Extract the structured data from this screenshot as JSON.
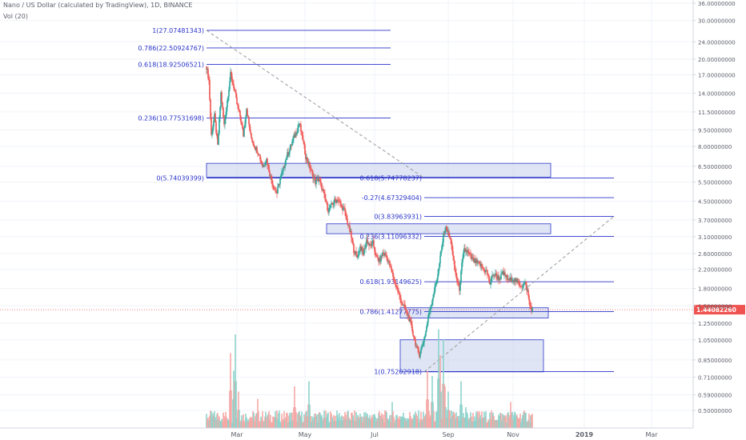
{
  "header": {
    "title": "Nano / US Dollar (calculated by TradingView), 1D, BINANCE",
    "volume_label": "Vol (20)"
  },
  "colors": {
    "up": "#26a69a",
    "down": "#ef5350",
    "vol_up": "#8fd3cc",
    "vol_down": "#f5a9a7",
    "fib_line": "#2b35c8",
    "fib_text": "#2b35c8",
    "zone_fill": "#c9d3ec",
    "zone_stroke": "#2b35c8",
    "trend": "#9a9a9a",
    "price_line": "#ef5350",
    "price_badge": "#ef5350",
    "grid": "#f0f3fa",
    "axis_text": "#5d606b"
  },
  "chart_data": {
    "type": "candlestick",
    "scale": "log",
    "x_ticks": [
      "Mar",
      "May",
      "Jul",
      "Sep",
      "Nov",
      "2019",
      "Mar"
    ],
    "y_ticks": [
      "36.00000000",
      "30.00000000",
      "24.00000000",
      "20.00000000",
      "17.00000000",
      "14.00000000",
      "11.50000000",
      "9.50000000",
      "8.00000000",
      "6.50000000",
      "5.50000000",
      "4.50000000",
      "3.70000000",
      "3.10000000",
      "2.60000000",
      "2.20000000",
      "1.80000000",
      "1.50000000",
      "1.25000000",
      "1.05000000",
      "0.85000000",
      "0.71000000",
      "0.59000000",
      "0.50000000"
    ],
    "current_price": "1.44082260",
    "fib_set_1": [
      {
        "label": "1(27.07481343)",
        "value": 27.07481343
      },
      {
        "label": "0.786(22.50924767)",
        "value": 22.50924767
      },
      {
        "label": "0.618(18.92506521)",
        "value": 18.92506521
      },
      {
        "label": "0.236(10.77531698)",
        "value": 10.77531698
      },
      {
        "label": "0(5.74039399)",
        "value": 5.74039399
      }
    ],
    "fib_set_2": [
      {
        "label": "0.618(5.74778237)",
        "value": 5.74778237
      },
      {
        "label": "-0.27(4.67329404)",
        "value": 4.67329404
      },
      {
        "label": "0(3.83963931)",
        "value": 3.83963931
      },
      {
        "label": "0.236(3.11096332)",
        "value": 3.11096332
      },
      {
        "label": "0.618(1.93149625)",
        "value": 1.93149625
      },
      {
        "label": "0.786(1.41277775)",
        "value": 1.41277775
      },
      {
        "label": "1(0.75202918)",
        "value": 0.75202918
      }
    ],
    "zones": [
      {
        "low": 5.8,
        "high": 6.7
      },
      {
        "low": 3.2,
        "high": 3.55
      },
      {
        "low": 1.32,
        "high": 1.47
      },
      {
        "low": 0.75,
        "high": 1.05
      }
    ],
    "trend_line_1": {
      "from": 27.07,
      "to": 5.74
    },
    "trend_line_2": {
      "from": 0.75,
      "to": 3.84
    },
    "price_path": [
      [
        0,
        18.5
      ],
      [
        3,
        16
      ],
      [
        6,
        9
      ],
      [
        10,
        11
      ],
      [
        14,
        8
      ],
      [
        18,
        14
      ],
      [
        22,
        10
      ],
      [
        26,
        13
      ],
      [
        30,
        17
      ],
      [
        34,
        15
      ],
      [
        38,
        12.5
      ],
      [
        42,
        11
      ],
      [
        46,
        9
      ],
      [
        50,
        12
      ],
      [
        55,
        9
      ],
      [
        60,
        8
      ],
      [
        65,
        7.5
      ],
      [
        70,
        6.5
      ],
      [
        75,
        7
      ],
      [
        80,
        5.8
      ],
      [
        85,
        5.1
      ],
      [
        88,
        4.9
      ],
      [
        92,
        5.7
      ],
      [
        96,
        6.3
      ],
      [
        100,
        7.2
      ],
      [
        104,
        7.8
      ],
      [
        108,
        8.6
      ],
      [
        112,
        9.3
      ],
      [
        116,
        10.2
      ],
      [
        120,
        8.7
      ],
      [
        124,
        7.2
      ],
      [
        128,
        6.6
      ],
      [
        132,
        6.0
      ],
      [
        136,
        5.5
      ],
      [
        140,
        5.7
      ],
      [
        144,
        5.2
      ],
      [
        148,
        4.6
      ],
      [
        152,
        4.1
      ],
      [
        156,
        4.3
      ],
      [
        160,
        4.5
      ],
      [
        164,
        4.6
      ],
      [
        168,
        4.3
      ],
      [
        172,
        4.1
      ],
      [
        176,
        3.6
      ],
      [
        180,
        3.2
      ],
      [
        184,
        2.7
      ],
      [
        188,
        2.5
      ],
      [
        192,
        2.8
      ],
      [
        196,
        2.6
      ],
      [
        200,
        3.0
      ],
      [
        204,
        2.8
      ],
      [
        208,
        2.9
      ],
      [
        212,
        2.5
      ],
      [
        216,
        2.4
      ],
      [
        220,
        2.6
      ],
      [
        224,
        2.55
      ],
      [
        228,
        2.35
      ],
      [
        232,
        2.1
      ],
      [
        236,
        1.9
      ],
      [
        240,
        1.7
      ],
      [
        244,
        1.55
      ],
      [
        248,
        1.45
      ],
      [
        252,
        1.35
      ],
      [
        256,
        1.2
      ],
      [
        260,
        1.05
      ],
      [
        263,
        0.95
      ],
      [
        266,
        0.9
      ],
      [
        270,
        1.0
      ],
      [
        274,
        1.15
      ],
      [
        278,
        1.4
      ],
      [
        282,
        1.6
      ],
      [
        286,
        1.85
      ],
      [
        290,
        2.2
      ],
      [
        294,
        2.8
      ],
      [
        297,
        3.3
      ],
      [
        300,
        3.4
      ],
      [
        303,
        3.1
      ],
      [
        306,
        2.9
      ],
      [
        308,
        2.5
      ],
      [
        310,
        2.2
      ],
      [
        313,
        1.95
      ],
      [
        316,
        1.8
      ],
      [
        319,
        2.3
      ],
      [
        322,
        2.7
      ],
      [
        326,
        2.65
      ],
      [
        330,
        2.5
      ],
      [
        334,
        2.4
      ],
      [
        338,
        2.35
      ],
      [
        342,
        2.3
      ],
      [
        346,
        2.2
      ],
      [
        350,
        2.15
      ],
      [
        354,
        1.9
      ],
      [
        358,
        2.1
      ],
      [
        362,
        2.05
      ],
      [
        366,
        2.0
      ],
      [
        370,
        2.1
      ],
      [
        374,
        2.05
      ],
      [
        378,
        1.95
      ],
      [
        382,
        2.0
      ],
      [
        386,
        1.95
      ],
      [
        390,
        1.9
      ],
      [
        394,
        1.85
      ],
      [
        398,
        1.9
      ],
      [
        401,
        1.75
      ],
      [
        404,
        1.5
      ],
      [
        407,
        1.44
      ]
    ],
    "volume_spikes": [
      [
        30,
        0.72
      ],
      [
        34,
        0.55
      ],
      [
        36,
        0.9
      ],
      [
        40,
        0.35
      ],
      [
        64,
        0.28
      ],
      [
        110,
        0.4
      ],
      [
        128,
        0.45
      ],
      [
        232,
        0.25
      ],
      [
        276,
        0.55
      ],
      [
        282,
        0.5
      ],
      [
        290,
        0.95
      ],
      [
        292,
        0.7
      ],
      [
        296,
        0.85
      ],
      [
        298,
        0.4
      ],
      [
        302,
        0.35
      ],
      [
        318,
        0.45
      ],
      [
        324,
        0.2
      ],
      [
        380,
        0.25
      ]
    ]
  }
}
